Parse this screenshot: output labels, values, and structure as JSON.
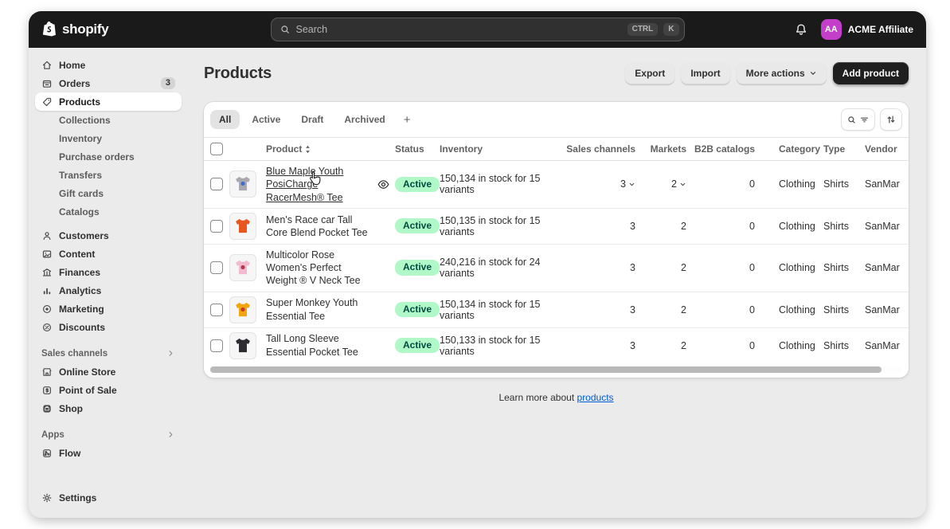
{
  "topbar": {
    "logo_text": "shopify",
    "search": {
      "placeholder": "Search",
      "shortcut": [
        "CTRL",
        "K"
      ]
    },
    "account": {
      "initials": "AA",
      "name": "ACME Affiliate"
    }
  },
  "sidebar": {
    "main": [
      {
        "label": "Home",
        "icon": "home"
      },
      {
        "label": "Orders",
        "icon": "orders",
        "badge": "3"
      },
      {
        "label": "Products",
        "icon": "products",
        "active": true
      },
      {
        "label": "Collections",
        "child": true
      },
      {
        "label": "Inventory",
        "child": true
      },
      {
        "label": "Purchase orders",
        "child": true
      },
      {
        "label": "Transfers",
        "child": true
      },
      {
        "label": "Gift cards",
        "child": true
      },
      {
        "label": "Catalogs",
        "child": true
      },
      {
        "label": "Customers",
        "icon": "customers",
        "gap": true
      },
      {
        "label": "Content",
        "icon": "content"
      },
      {
        "label": "Finances",
        "icon": "finances"
      },
      {
        "label": "Analytics",
        "icon": "analytics"
      },
      {
        "label": "Marketing",
        "icon": "marketing"
      },
      {
        "label": "Discounts",
        "icon": "discounts"
      }
    ],
    "sections": [
      {
        "header": "Sales channels",
        "items": [
          {
            "label": "Online Store",
            "icon": "online-store"
          },
          {
            "label": "Point of Sale",
            "icon": "pos"
          },
          {
            "label": "Shop",
            "icon": "shop"
          }
        ]
      },
      {
        "header": "Apps",
        "items": [
          {
            "label": "Flow",
            "icon": "flow"
          }
        ]
      }
    ],
    "settings": {
      "label": "Settings",
      "icon": "settings"
    }
  },
  "header": {
    "title": "Products",
    "export_label": "Export",
    "import_label": "Import",
    "more_actions_label": "More actions",
    "add_product_label": "Add product"
  },
  "tabs": {
    "items": [
      "All",
      "Active",
      "Draft",
      "Archived"
    ],
    "active": "All",
    "add_label": "+"
  },
  "table": {
    "columns": [
      {
        "label": "Product"
      },
      {
        "label": "Status"
      },
      {
        "label": "Inventory"
      },
      {
        "label": "Sales channels"
      },
      {
        "label": "Markets"
      },
      {
        "label": "B2B catalogs"
      },
      {
        "label": "Category"
      },
      {
        "label": "Type"
      },
      {
        "label": "Vendor"
      }
    ],
    "rows": [
      {
        "name": "Blue Maple Youth PosiCharge RacerMesh® Tee",
        "status": "Active",
        "inventory": "150,134 in stock for 15 variants",
        "sales_channels": "3",
        "markets": "2",
        "b2b_catalogs": "0",
        "category": "Clothing",
        "type": "Shirts",
        "vendor": "SanMar",
        "hovered": true,
        "thumb": {
          "shirt": "#a9a9af",
          "accent": "#3e6fd0"
        }
      },
      {
        "name": "Men's Race car Tall Core Blend Pocket Tee",
        "status": "Active",
        "inventory": "150,135 in stock for 15 variants",
        "sales_channels": "3",
        "markets": "2",
        "b2b_catalogs": "0",
        "category": "Clothing",
        "type": "Shirts",
        "vendor": "SanMar",
        "thumb": {
          "shirt": "#e8551f",
          "accent": null
        }
      },
      {
        "name": "Multicolor Rose Women's Perfect Weight ® V Neck Tee",
        "status": "Active",
        "inventory": "240,216 in stock for 24 variants",
        "sales_channels": "3",
        "markets": "2",
        "b2b_catalogs": "0",
        "category": "Clothing",
        "type": "Shirts",
        "vendor": "SanMar",
        "thumb": {
          "shirt": "#f2b9cf",
          "accent": "#b33a4e"
        }
      },
      {
        "name": "Super Monkey Youth Essential Tee",
        "status": "Active",
        "inventory": "150,134 in stock for 15 variants",
        "sales_channels": "3",
        "markets": "2",
        "b2b_catalogs": "0",
        "category": "Clothing",
        "type": "Shirts",
        "vendor": "SanMar",
        "thumb": {
          "shirt": "#f2a60d",
          "accent": "#c9372c"
        }
      },
      {
        "name": "Tall Long Sleeve Essential Pocket Tee",
        "status": "Active",
        "inventory": "150,133 in stock for 15 variants",
        "sales_channels": "3",
        "markets": "2",
        "b2b_catalogs": "0",
        "category": "Clothing",
        "type": "Shirts",
        "vendor": "SanMar",
        "thumb": {
          "shirt": "#2d2d31",
          "accent": null
        }
      }
    ]
  },
  "footer": {
    "text": "Learn more about",
    "link_label": "products"
  },
  "colors": {
    "topbar_bg": "#1a1a1a",
    "frame_bg": "#ebebeb",
    "status_active_bg": "#b1f8c9",
    "status_active_text": "#014b40",
    "avatar_bg": "#c43fc9",
    "link": "#005bd3"
  }
}
